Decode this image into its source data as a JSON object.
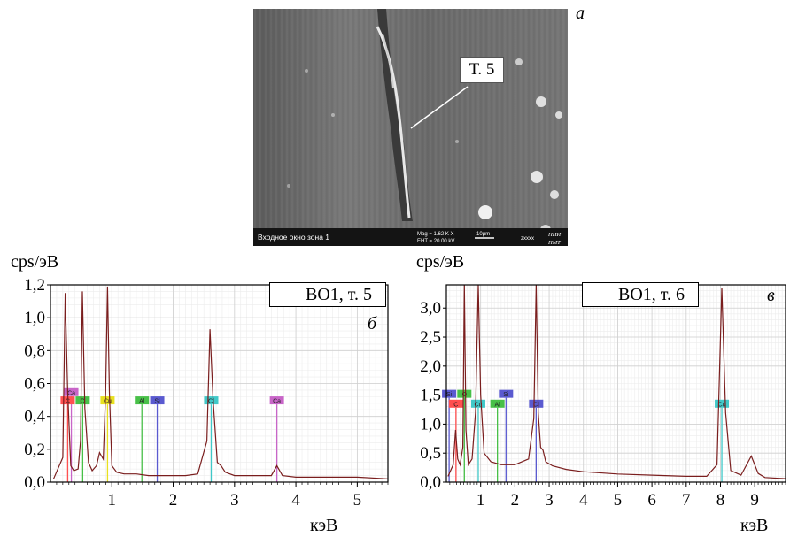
{
  "sem": {
    "letter": "а",
    "callout": "Т. 5",
    "bar_left": "Входное окно зона 1",
    "mag": "Mag =  1.62 K X",
    "eht": "EHT = 20.00 kV",
    "scale": "10μm",
    "code": "zxxxx",
    "logo_1": "НИИ",
    "logo_2": "ПМТ"
  },
  "chart_data": [
    {
      "type": "line",
      "panel": "б",
      "ylabel": "cps/эВ",
      "xlabel": "кэВ",
      "xlim": [
        0,
        5.5
      ],
      "ylim": [
        0,
        1.2
      ],
      "xticks": [
        "1",
        "2",
        "3",
        "4",
        "5"
      ],
      "yticks": [
        "0,0",
        "0,2",
        "0,4",
        "0,6",
        "0,8",
        "1,0",
        "1,2"
      ],
      "grid": true,
      "legend": "top-right",
      "series": [
        {
          "name": "ВО1, т. 5",
          "color": "#7a1e1e",
          "x": [
            0.05,
            0.2,
            0.24,
            0.28,
            0.33,
            0.38,
            0.45,
            0.49,
            0.52,
            0.56,
            0.62,
            0.68,
            0.75,
            0.8,
            0.86,
            0.9,
            0.93,
            0.96,
            1.0,
            1.08,
            1.2,
            1.4,
            1.6,
            1.8,
            2.0,
            2.2,
            2.4,
            2.55,
            2.6,
            2.65,
            2.72,
            2.78,
            2.85,
            3.0,
            3.3,
            3.6,
            3.69,
            3.78,
            4.0,
            4.5,
            5.0,
            5.5
          ],
          "y": [
            0.02,
            0.15,
            1.15,
            0.55,
            0.1,
            0.07,
            0.08,
            0.25,
            1.16,
            0.45,
            0.12,
            0.07,
            0.1,
            0.18,
            0.14,
            0.55,
            1.19,
            0.55,
            0.1,
            0.06,
            0.05,
            0.05,
            0.04,
            0.04,
            0.04,
            0.04,
            0.05,
            0.25,
            0.93,
            0.5,
            0.12,
            0.1,
            0.06,
            0.04,
            0.04,
            0.04,
            0.1,
            0.04,
            0.03,
            0.03,
            0.03,
            0.02
          ]
        }
      ],
      "element_markers": [
        {
          "label": "Ca",
          "x": 0.34,
          "y": 0.55,
          "color": "#c865c8"
        },
        {
          "label": "C",
          "x": 0.28,
          "y": 0.5,
          "color": "#ff5050"
        },
        {
          "label": "O",
          "x": 0.525,
          "y": 0.5,
          "color": "#48c048"
        },
        {
          "label": "Cu",
          "x": 0.93,
          "y": 0.5,
          "color": "#e8e020"
        },
        {
          "label": "Al",
          "x": 1.49,
          "y": 0.5,
          "color": "#48c048"
        },
        {
          "label": "Si",
          "x": 1.74,
          "y": 0.5,
          "color": "#5a5ad0"
        },
        {
          "label": "Cl",
          "x": 2.62,
          "y": 0.5,
          "color": "#40c8c8"
        },
        {
          "label": "Ca",
          "x": 3.69,
          "y": 0.5,
          "color": "#c865c8"
        }
      ]
    },
    {
      "type": "line",
      "panel": "в",
      "ylabel": "cps/эВ",
      "xlabel": "кэВ",
      "xlim": [
        0,
        9.9
      ],
      "ylim": [
        0,
        3.4
      ],
      "xticks": [
        "1",
        "2",
        "3",
        "4",
        "5",
        "6",
        "7",
        "8",
        "9"
      ],
      "yticks": [
        "0,0",
        "0,5",
        "1,0",
        "1,5",
        "2,0",
        "2,5",
        "3,0"
      ],
      "grid": true,
      "legend": "top-right",
      "series": [
        {
          "name": "ВО1, т. 6",
          "color": "#7a1e1e",
          "x": [
            0.05,
            0.2,
            0.27,
            0.33,
            0.4,
            0.48,
            0.525,
            0.57,
            0.64,
            0.75,
            0.85,
            0.93,
            1.0,
            1.1,
            1.3,
            1.6,
            2.0,
            2.4,
            2.55,
            2.62,
            2.68,
            2.75,
            2.82,
            2.9,
            3.1,
            3.5,
            4.0,
            5.0,
            6.0,
            7.0,
            7.6,
            7.9,
            8.04,
            8.15,
            8.3,
            8.6,
            8.9,
            9.1,
            9.3,
            9.9
          ],
          "y": [
            0.1,
            0.3,
            0.9,
            0.4,
            0.3,
            0.6,
            3.4,
            0.9,
            0.3,
            0.4,
            1.2,
            3.4,
            1.5,
            0.5,
            0.35,
            0.3,
            0.3,
            0.4,
            1.1,
            3.4,
            1.2,
            0.6,
            0.55,
            0.35,
            0.28,
            0.22,
            0.18,
            0.14,
            0.12,
            0.1,
            0.1,
            0.3,
            3.35,
            1.2,
            0.2,
            0.12,
            0.45,
            0.15,
            0.08,
            0.06
          ]
        }
      ],
      "element_markers": [
        {
          "label": "Si",
          "x": 0.08,
          "y": 1.53,
          "color": "#5a5ad0"
        },
        {
          "label": "C",
          "x": 0.28,
          "y": 1.36,
          "color": "#ff5050"
        },
        {
          "label": "O",
          "x": 0.525,
          "y": 1.53,
          "color": "#48c048"
        },
        {
          "label": "Cu",
          "x": 0.93,
          "y": 1.36,
          "color": "#40c8c8"
        },
        {
          "label": "Al",
          "x": 1.49,
          "y": 1.36,
          "color": "#48c048"
        },
        {
          "label": "Si",
          "x": 1.74,
          "y": 1.53,
          "color": "#5a5ad0"
        },
        {
          "label": "Cl",
          "x": 2.62,
          "y": 1.36,
          "color": "#5a5ad0"
        },
        {
          "label": "Cu",
          "x": 8.04,
          "y": 1.36,
          "color": "#40c8c8"
        }
      ]
    }
  ]
}
